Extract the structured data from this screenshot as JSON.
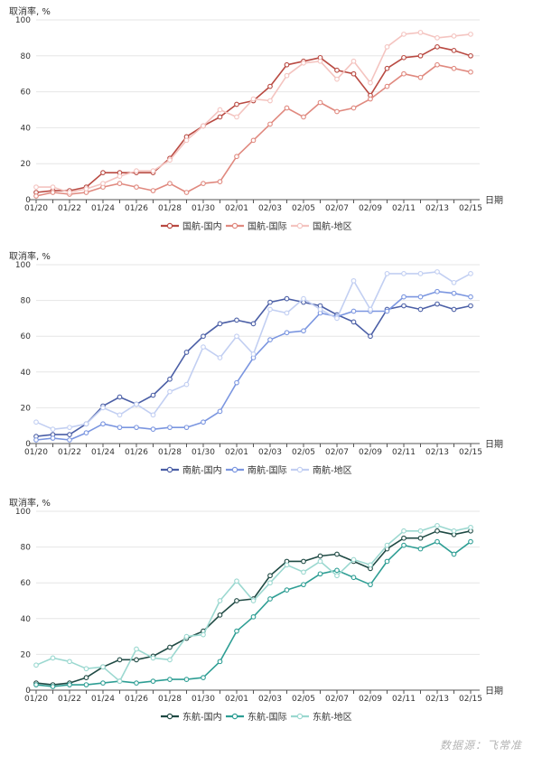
{
  "chart_data": [
    {
      "type": "line",
      "ylabel": "取消率, %",
      "xlabel": "日期",
      "ylim": [
        0,
        100
      ],
      "yticks": [
        0,
        20,
        40,
        60,
        80,
        100
      ],
      "grid": true,
      "legend_position": "bottom",
      "x": [
        "01/20",
        "01/21",
        "01/22",
        "01/23",
        "01/24",
        "01/25",
        "01/26",
        "01/27",
        "01/28",
        "01/29",
        "01/30",
        "01/31",
        "02/01",
        "02/02",
        "02/03",
        "02/04",
        "02/05",
        "02/06",
        "02/07",
        "02/08",
        "02/09",
        "02/10",
        "02/11",
        "02/12",
        "02/13",
        "02/14",
        "02/15"
      ],
      "xtick_labels": [
        "01/20",
        "01/22",
        "01/24",
        "01/26",
        "01/28",
        "01/30",
        "02/01",
        "02/03",
        "02/05",
        "02/07",
        "02/09",
        "02/11",
        "02/13",
        "02/15"
      ],
      "series": [
        {
          "name": "国航-国内",
          "color": "#b94a42",
          "values": [
            4,
            5,
            5,
            7,
            15,
            15,
            15,
            15,
            23,
            35,
            41,
            46,
            53,
            55,
            63,
            75,
            77,
            79,
            72,
            70,
            58,
            73,
            79,
            80,
            85,
            83,
            80
          ]
        },
        {
          "name": "国航-国际",
          "color": "#e0897f",
          "values": [
            2,
            4,
            3,
            4,
            7,
            9,
            7,
            5,
            9,
            4,
            9,
            10,
            24,
            33,
            42,
            51,
            46,
            54,
            49,
            51,
            56,
            63,
            70,
            68,
            75,
            73,
            71
          ]
        },
        {
          "name": "国航-地区",
          "color": "#f4c4c0",
          "values": [
            7,
            7,
            4,
            6,
            9,
            13,
            16,
            16,
            22,
            33,
            41,
            50,
            46,
            56,
            55,
            69,
            76,
            77,
            67,
            77,
            65,
            85,
            92,
            93,
            90,
            91,
            92
          ]
        }
      ]
    },
    {
      "type": "line",
      "ylabel": "取消率, %",
      "xlabel": "日期",
      "ylim": [
        0,
        100
      ],
      "yticks": [
        0,
        20,
        40,
        60,
        80,
        100
      ],
      "grid": true,
      "legend_position": "bottom",
      "x": [
        "01/20",
        "01/21",
        "01/22",
        "01/23",
        "01/24",
        "01/25",
        "01/26",
        "01/27",
        "01/28",
        "01/29",
        "01/30",
        "01/31",
        "02/01",
        "02/02",
        "02/03",
        "02/04",
        "02/05",
        "02/06",
        "02/07",
        "02/08",
        "02/09",
        "02/10",
        "02/11",
        "02/12",
        "02/13",
        "02/14",
        "02/15"
      ],
      "xtick_labels": [
        "01/20",
        "01/22",
        "01/24",
        "01/26",
        "01/28",
        "01/30",
        "02/01",
        "02/03",
        "02/05",
        "02/07",
        "02/09",
        "02/11",
        "02/13",
        "02/15"
      ],
      "series": [
        {
          "name": "南航-国内",
          "color": "#4b5fa6",
          "values": [
            4,
            5,
            5,
            11,
            21,
            26,
            22,
            27,
            36,
            51,
            60,
            67,
            69,
            67,
            79,
            81,
            79,
            77,
            72,
            68,
            60,
            75,
            77,
            75,
            78,
            75,
            77
          ]
        },
        {
          "name": "南航-国际",
          "color": "#7b96e0",
          "values": [
            2,
            3,
            2,
            6,
            11,
            9,
            9,
            8,
            9,
            9,
            12,
            18,
            34,
            48,
            58,
            62,
            63,
            73,
            71,
            74,
            74,
            74,
            82,
            82,
            85,
            84,
            82
          ]
        },
        {
          "name": "南航-地区",
          "color": "#c2cff2",
          "values": [
            12,
            8,
            9,
            11,
            20,
            16,
            22,
            16,
            29,
            33,
            54,
            48,
            60,
            50,
            75,
            73,
            81,
            75,
            70,
            91,
            75,
            95,
            95,
            95,
            96,
            90,
            95
          ]
        }
      ]
    },
    {
      "type": "line",
      "ylabel": "取消率, %",
      "xlabel": "日期",
      "ylim": [
        0,
        100
      ],
      "yticks": [
        0,
        20,
        40,
        60,
        80,
        100
      ],
      "grid": true,
      "legend_position": "bottom",
      "x": [
        "01/20",
        "01/21",
        "01/22",
        "01/23",
        "01/24",
        "01/25",
        "01/26",
        "01/27",
        "01/28",
        "01/29",
        "01/30",
        "01/31",
        "02/01",
        "02/02",
        "02/03",
        "02/04",
        "02/05",
        "02/06",
        "02/07",
        "02/08",
        "02/09",
        "02/10",
        "02/11",
        "02/12",
        "02/13",
        "02/14",
        "02/15"
      ],
      "xtick_labels": [
        "01/20",
        "01/22",
        "01/24",
        "01/26",
        "01/28",
        "01/30",
        "02/01",
        "02/03",
        "02/05",
        "02/07",
        "02/09",
        "02/11",
        "02/13",
        "02/15"
      ],
      "series": [
        {
          "name": "东航-国内",
          "color": "#1f4a44",
          "values": [
            4,
            3,
            4,
            7,
            13,
            17,
            17,
            19,
            24,
            29,
            33,
            42,
            50,
            51,
            64,
            72,
            72,
            75,
            76,
            72,
            68,
            79,
            85,
            85,
            89,
            87,
            89
          ]
        },
        {
          "name": "东航-国际",
          "color": "#2e9e94",
          "values": [
            3,
            2,
            3,
            3,
            4,
            5,
            4,
            5,
            6,
            6,
            7,
            16,
            33,
            41,
            51,
            56,
            59,
            65,
            67,
            63,
            59,
            72,
            81,
            79,
            83,
            76,
            83
          ]
        },
        {
          "name": "东航-地区",
          "color": "#9bd8d0",
          "values": [
            14,
            18,
            16,
            12,
            13,
            5,
            23,
            18,
            17,
            30,
            31,
            50,
            61,
            50,
            60,
            70,
            66,
            72,
            64,
            73,
            70,
            81,
            89,
            89,
            92,
            89,
            91
          ]
        }
      ]
    }
  ],
  "source_note": "数据源：飞常准"
}
